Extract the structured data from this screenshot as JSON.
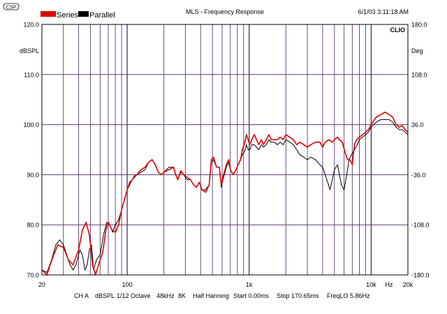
{
  "logo": "CSP",
  "clio_badge": "CLIO",
  "chart_data": {
    "type": "line",
    "title": "MLS - Frequency Response",
    "timestamp": "6/1/03 3:11:18 AM",
    "legend": [
      {
        "name": "Series",
        "color": "#dd0000"
      },
      {
        "name": "Parallel",
        "color": "#000000"
      }
    ],
    "legend_placement": "top-left",
    "y_left": {
      "unit": "dBSPL",
      "range": [
        70,
        120
      ],
      "ticks": [
        "70.0",
        "80.0",
        "90.0",
        "100.0",
        "110.0",
        "120.0"
      ]
    },
    "y_right": {
      "unit": "Deg",
      "range": [
        -180,
        180
      ],
      "ticks": [
        "-180.0",
        "-108.0",
        "-36.0",
        "36.0",
        "108.0",
        "180.0"
      ]
    },
    "x": {
      "scale": "log",
      "range": [
        20,
        20000
      ],
      "tick_labels": [
        {
          "value": 20,
          "label": "20"
        },
        {
          "value": 100,
          "label": "100"
        },
        {
          "value": 1000,
          "label": "1k"
        },
        {
          "value": 10000,
          "label": "10k"
        },
        {
          "value": 20000,
          "label": "20k"
        }
      ],
      "unit_label": "Hz",
      "unit_label_at": 14000
    },
    "grid": true,
    "status_bar": [
      "CH A",
      "dBSPL",
      "1/12 Octave",
      "48kHz",
      "8K",
      "Half Hanning",
      "Start 0.00ms",
      "Stop 170.65ms",
      "FreqLO 5.86Hz"
    ],
    "series": [
      {
        "name": "Series",
        "color": "#dd0000",
        "points": [
          [
            20,
            71
          ],
          [
            22,
            70
          ],
          [
            23,
            71.5
          ],
          [
            25,
            74
          ],
          [
            27,
            76
          ],
          [
            30,
            75.5
          ],
          [
            33,
            73
          ],
          [
            36,
            72
          ],
          [
            40,
            75
          ],
          [
            43,
            79
          ],
          [
            46,
            80.5
          ],
          [
            49,
            78
          ],
          [
            52,
            72
          ],
          [
            55,
            70
          ],
          [
            60,
            73
          ],
          [
            63,
            74.5
          ],
          [
            67,
            79
          ],
          [
            70,
            80.5
          ],
          [
            75,
            79
          ],
          [
            80,
            78.5
          ],
          [
            85,
            80
          ],
          [
            90,
            83
          ],
          [
            95,
            85
          ],
          [
            100,
            87
          ],
          [
            105,
            88.5
          ],
          [
            110,
            89
          ],
          [
            115,
            89.8
          ],
          [
            120,
            90
          ],
          [
            130,
            91
          ],
          [
            140,
            91.5
          ],
          [
            150,
            92.5
          ],
          [
            160,
            93
          ],
          [
            170,
            92
          ],
          [
            180,
            90.5
          ],
          [
            190,
            90
          ],
          [
            200,
            90.5
          ],
          [
            220,
            91
          ],
          [
            240,
            91.5
          ],
          [
            250,
            90
          ],
          [
            260,
            89
          ],
          [
            275,
            90.8
          ],
          [
            290,
            90
          ],
          [
            310,
            89.5
          ],
          [
            330,
            89
          ],
          [
            350,
            88
          ],
          [
            370,
            87.5
          ],
          [
            390,
            88.5
          ],
          [
            410,
            87
          ],
          [
            440,
            86.5
          ],
          [
            470,
            88
          ],
          [
            490,
            93
          ],
          [
            510,
            93.5
          ],
          [
            540,
            91.5
          ],
          [
            570,
            91.5
          ],
          [
            590,
            88
          ],
          [
            610,
            89.5
          ],
          [
            650,
            92
          ],
          [
            680,
            93
          ],
          [
            700,
            91
          ],
          [
            740,
            90
          ],
          [
            780,
            91
          ],
          [
            810,
            92
          ],
          [
            850,
            93
          ],
          [
            880,
            95
          ],
          [
            910,
            96
          ],
          [
            930,
            97
          ],
          [
            950,
            98
          ],
          [
            980,
            97
          ],
          [
            1010,
            96
          ],
          [
            1050,
            97
          ],
          [
            1100,
            98
          ],
          [
            1150,
            97
          ],
          [
            1200,
            96
          ],
          [
            1260,
            97
          ],
          [
            1310,
            96
          ],
          [
            1380,
            97
          ],
          [
            1450,
            98
          ],
          [
            1520,
            97
          ],
          [
            1600,
            97
          ],
          [
            1700,
            97
          ],
          [
            1800,
            97.5
          ],
          [
            1900,
            97
          ],
          [
            2000,
            98
          ],
          [
            2150,
            97.5
          ],
          [
            2300,
            97
          ],
          [
            2450,
            96
          ],
          [
            2600,
            96.5
          ],
          [
            2800,
            96
          ],
          [
            3000,
            95.5
          ],
          [
            3200,
            96
          ],
          [
            3500,
            96.5
          ],
          [
            3800,
            96.5
          ],
          [
            4000,
            95.5
          ],
          [
            4200,
            96.5
          ],
          [
            4500,
            97
          ],
          [
            4800,
            96.5
          ],
          [
            5000,
            97
          ],
          [
            5300,
            97.5
          ],
          [
            5500,
            97
          ],
          [
            5800,
            96.5
          ],
          [
            6100,
            94.5
          ],
          [
            6400,
            93
          ],
          [
            6700,
            93
          ],
          [
            7000,
            92
          ],
          [
            7300,
            96
          ],
          [
            7600,
            97
          ],
          [
            8000,
            97.5
          ],
          [
            8500,
            98
          ],
          [
            9000,
            98.5
          ],
          [
            9500,
            99
          ],
          [
            10000,
            100
          ],
          [
            11000,
            101.5
          ],
          [
            12000,
            102
          ],
          [
            13000,
            102.5
          ],
          [
            14000,
            102
          ],
          [
            15000,
            101.5
          ],
          [
            16000,
            100
          ],
          [
            17000,
            99.5
          ],
          [
            18000,
            99.8
          ],
          [
            19000,
            99
          ],
          [
            20000,
            98.5
          ]
        ]
      },
      {
        "name": "Parallel",
        "color": "#000000",
        "points": [
          [
            20,
            71
          ],
          [
            22,
            70.5
          ],
          [
            24,
            73
          ],
          [
            26,
            76
          ],
          [
            28,
            77
          ],
          [
            30,
            76
          ],
          [
            32,
            74
          ],
          [
            34,
            72
          ],
          [
            36,
            71
          ],
          [
            38,
            72
          ],
          [
            40,
            74
          ],
          [
            41,
            75
          ],
          [
            43,
            74
          ],
          [
            45,
            71
          ],
          [
            47,
            72
          ],
          [
            49,
            75
          ],
          [
            51,
            76
          ],
          [
            53,
            71
          ],
          [
            56,
            73
          ],
          [
            60,
            74
          ],
          [
            64,
            78
          ],
          [
            68,
            80.5
          ],
          [
            72,
            80
          ],
          [
            76,
            78.5
          ],
          [
            80,
            80
          ],
          [
            85,
            81
          ],
          [
            90,
            83
          ],
          [
            95,
            85
          ],
          [
            100,
            87
          ],
          [
            105,
            88
          ],
          [
            110,
            89
          ],
          [
            115,
            89.5
          ],
          [
            120,
            90
          ],
          [
            130,
            90.5
          ],
          [
            140,
            91
          ],
          [
            150,
            92.5
          ],
          [
            160,
            93
          ],
          [
            170,
            92
          ],
          [
            180,
            90.5
          ],
          [
            190,
            90
          ],
          [
            200,
            90.5
          ],
          [
            220,
            91.5
          ],
          [
            240,
            91.5
          ],
          [
            250,
            90
          ],
          [
            260,
            89
          ],
          [
            275,
            90.5
          ],
          [
            290,
            90
          ],
          [
            310,
            89
          ],
          [
            330,
            89
          ],
          [
            350,
            88
          ],
          [
            370,
            87.5
          ],
          [
            390,
            88.5
          ],
          [
            410,
            87
          ],
          [
            440,
            87
          ],
          [
            470,
            88
          ],
          [
            490,
            92.5
          ],
          [
            510,
            93
          ],
          [
            540,
            91.5
          ],
          [
            570,
            91.5
          ],
          [
            590,
            87.5
          ],
          [
            610,
            89
          ],
          [
            650,
            91.5
          ],
          [
            680,
            92.5
          ],
          [
            700,
            91
          ],
          [
            740,
            90
          ],
          [
            780,
            91
          ],
          [
            810,
            92
          ],
          [
            850,
            93
          ],
          [
            880,
            94
          ],
          [
            910,
            94.5
          ],
          [
            930,
            95
          ],
          [
            950,
            96
          ],
          [
            980,
            95
          ],
          [
            1010,
            95
          ],
          [
            1050,
            96
          ],
          [
            1100,
            96
          ],
          [
            1150,
            95.5
          ],
          [
            1200,
            95
          ],
          [
            1260,
            96
          ],
          [
            1310,
            95.5
          ],
          [
            1380,
            96
          ],
          [
            1450,
            97
          ],
          [
            1520,
            96.5
          ],
          [
            1600,
            96.5
          ],
          [
            1700,
            96
          ],
          [
            1800,
            96.5
          ],
          [
            1900,
            96
          ],
          [
            2000,
            97
          ],
          [
            2150,
            96.5
          ],
          [
            2300,
            96
          ],
          [
            2450,
            95
          ],
          [
            2600,
            94
          ],
          [
            2800,
            93.5
          ],
          [
            3000,
            93
          ],
          [
            3200,
            93.5
          ],
          [
            3500,
            93
          ],
          [
            3800,
            92
          ],
          [
            4000,
            91.5
          ],
          [
            4200,
            90
          ],
          [
            4400,
            88.5
          ],
          [
            4600,
            87
          ],
          [
            4800,
            89
          ],
          [
            5000,
            91
          ],
          [
            5300,
            92
          ],
          [
            5500,
            90
          ],
          [
            5700,
            88
          ],
          [
            6000,
            87
          ],
          [
            6300,
            90
          ],
          [
            6600,
            93
          ],
          [
            6900,
            94
          ],
          [
            7300,
            95
          ],
          [
            7700,
            96
          ],
          [
            8000,
            97
          ],
          [
            8500,
            97.5
          ],
          [
            9000,
            98
          ],
          [
            9500,
            98.5
          ],
          [
            10000,
            99.5
          ],
          [
            11000,
            100.5
          ],
          [
            12000,
            101
          ],
          [
            13000,
            101
          ],
          [
            14000,
            101
          ],
          [
            15000,
            100.5
          ],
          [
            16000,
            99.5
          ],
          [
            17000,
            99
          ],
          [
            18000,
            99
          ],
          [
            19000,
            98.5
          ],
          [
            20000,
            98
          ]
        ]
      }
    ]
  }
}
